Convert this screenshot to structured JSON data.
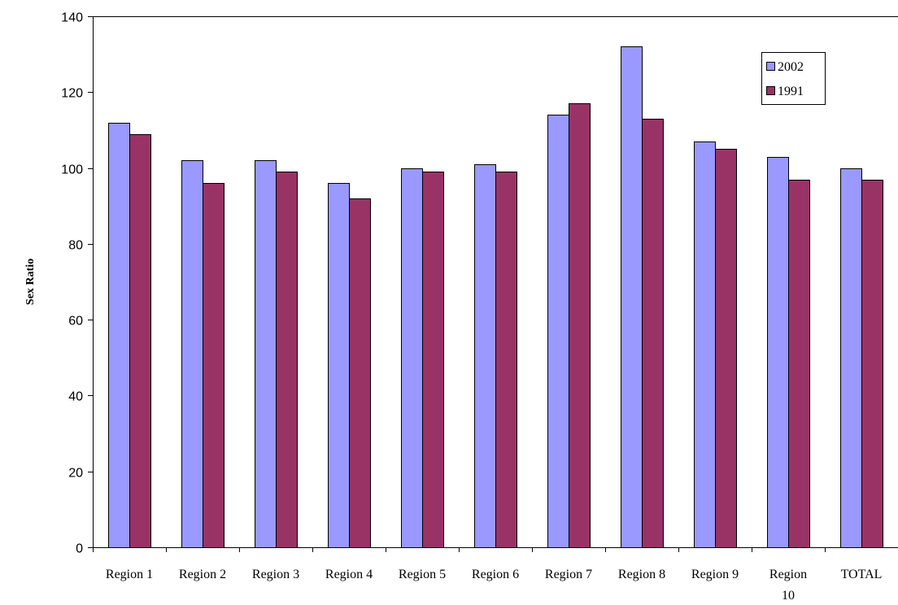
{
  "chart_data": {
    "type": "bar",
    "title": "",
    "xlabel": "",
    "ylabel": "Sex Ratio",
    "ylim": [
      0,
      140
    ],
    "yticks": [
      0,
      20,
      40,
      60,
      80,
      100,
      120,
      140
    ],
    "grid": false,
    "legend_position": "top-right",
    "categories": [
      [
        "Region 1"
      ],
      [
        "Region 2"
      ],
      [
        "Region 3"
      ],
      [
        "Region 4"
      ],
      [
        "Region 5"
      ],
      [
        "Region 6"
      ],
      [
        "Region 7"
      ],
      [
        "Region 8"
      ],
      [
        "Region 9"
      ],
      [
        "Region",
        "10"
      ],
      [
        "TOTAL"
      ]
    ],
    "series": [
      {
        "name": "2002",
        "color": "#9999ff",
        "values": [
          112,
          102,
          102,
          96,
          100,
          101,
          114,
          132,
          107,
          103,
          100
        ]
      },
      {
        "name": "1991",
        "color": "#993366",
        "values": [
          109,
          96,
          99,
          92,
          99,
          99,
          117,
          113,
          105,
          97,
          97
        ]
      }
    ]
  }
}
